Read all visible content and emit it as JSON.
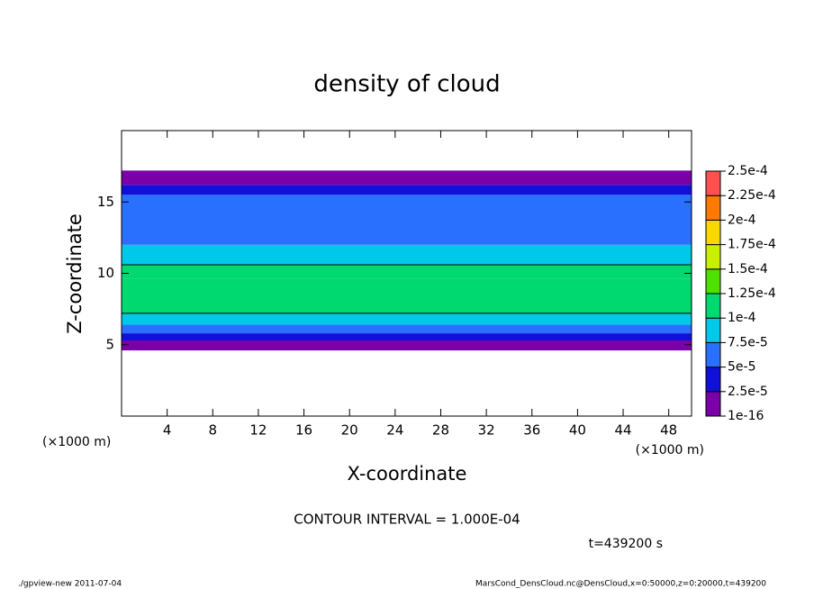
{
  "chart_data": {
    "type": "contour",
    "title": "density of cloud",
    "x_label": "X-coordinate",
    "y_label": "Z-coordinate",
    "x_unit_left": "(×1000 m)",
    "x_unit_right": "(×1000 m)",
    "xlim": [
      0,
      50
    ],
    "xticks": [
      4,
      8,
      12,
      16,
      20,
      24,
      28,
      32,
      36,
      40,
      44,
      48
    ],
    "ylim": [
      0,
      20
    ],
    "yticks": [
      5,
      10,
      15
    ],
    "z_bins": [
      4.6,
      5.3,
      5.8,
      6.4,
      7.2,
      9.6,
      10.6,
      12,
      15.5,
      16.2,
      17.2
    ],
    "values": [
      1e-05,
      4e-05,
      7e-05,
      9e-05,
      0.00012,
      0.00011,
      8e-05,
      6e-05,
      3e-05,
      1e-05
    ],
    "contour_interval": 0.0001,
    "contour_text": "CONTOUR INTERVAL = 1.000E-04",
    "time_text": "t=439200 s",
    "colorbar_ticks": [
      {
        "value": 1e-16,
        "label": "1e-16"
      },
      {
        "value": 2.5e-05,
        "label": "2.5e-5"
      },
      {
        "value": 5e-05,
        "label": "5e-5"
      },
      {
        "value": 7.5e-05,
        "label": "7.5e-5"
      },
      {
        "value": 0.0001,
        "label": "1e-4"
      },
      {
        "value": 0.000125,
        "label": "1.25e-4"
      },
      {
        "value": 0.00015,
        "label": "1.5e-4"
      },
      {
        "value": 0.000175,
        "label": "1.75e-4"
      },
      {
        "value": 0.0002,
        "label": "2e-4"
      },
      {
        "value": 0.000225,
        "label": "2.25e-4"
      },
      {
        "value": 0.00025,
        "label": "2.5e-4"
      }
    ],
    "colors": [
      "#7a00a8",
      "#1010d8",
      "#2a70ff",
      "#00c8e8",
      "#00d870",
      "#50e000",
      "#c8f000",
      "#f8d800",
      "#ff7a00",
      "#ff5050"
    ],
    "footer_left": "./gpview-new  2011-07-04",
    "footer_right": "MarsCond_DensCloud.nc@DensCloud,x=0:50000,z=0:20000,t=439200"
  }
}
